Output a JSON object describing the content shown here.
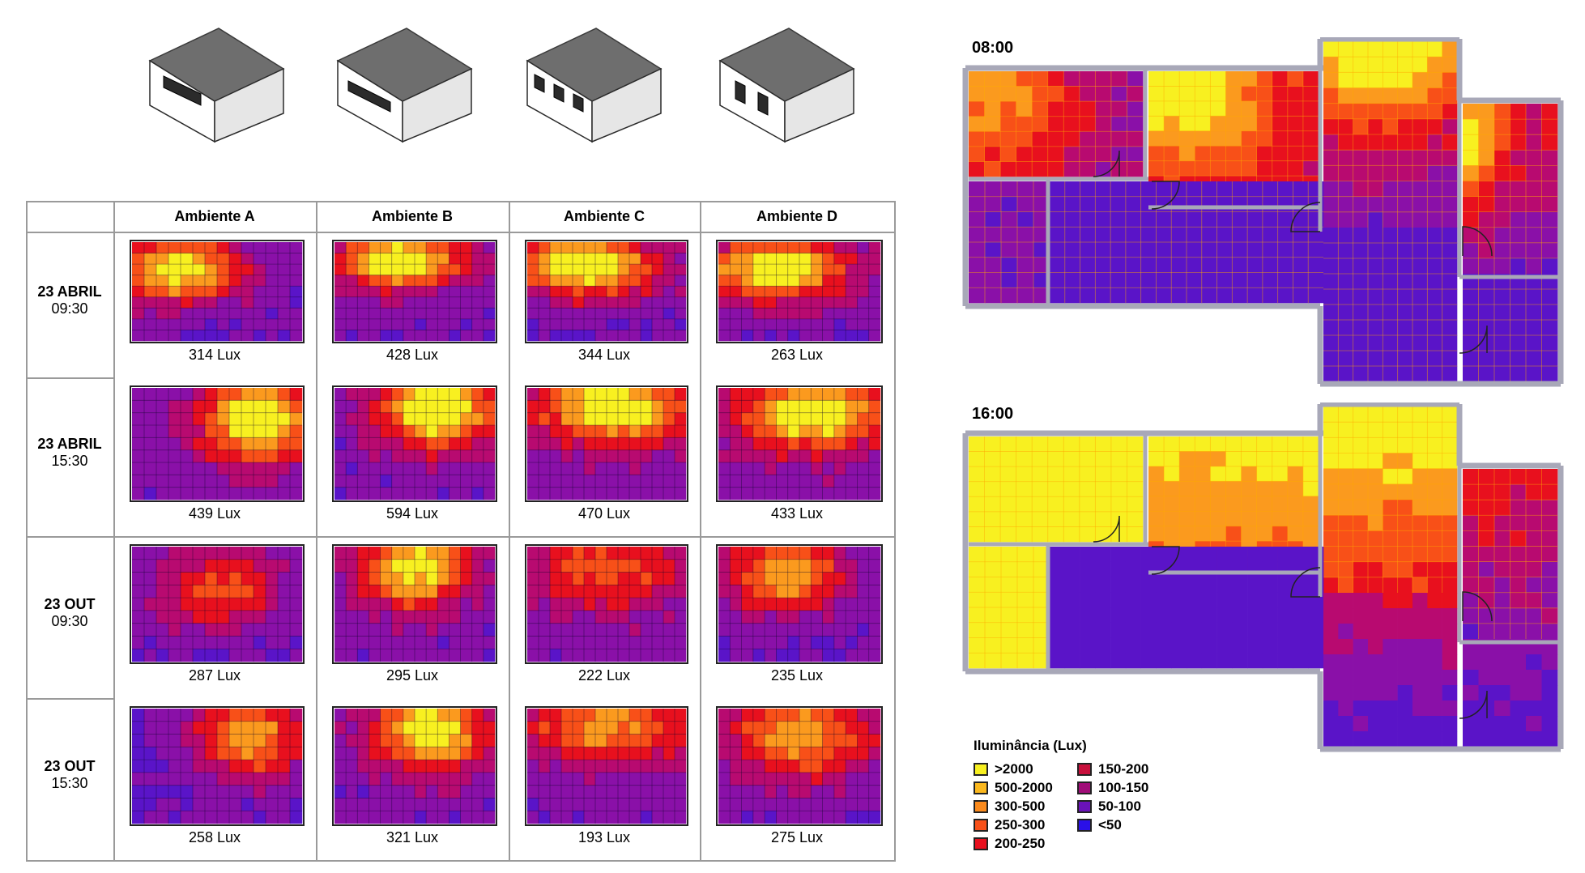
{
  "colors": {
    "c0": "#2a10e8",
    "c1": "#5a14c8",
    "c2": "#8a10a8",
    "c3": "#b80a70",
    "c4": "#e8101e",
    "c5": "#f85018",
    "c6": "#fb9a1e",
    "c7": "#f8f020",
    "pure_blue": "#0a18ff",
    "wall": "#a8a8b8",
    "table_line": "#9a9a9a"
  },
  "table": {
    "columns": [
      "Ambiente A",
      "Ambiente B",
      "Ambiente C",
      "Ambiente D"
    ],
    "rows": [
      {
        "date": "23 ABRIL",
        "time": "09:30",
        "lux": [
          "314 Lux",
          "428 Lux",
          "344 Lux",
          "263 Lux"
        ]
      },
      {
        "date": "23 ABRIL",
        "time": "15:30",
        "lux": [
          "439 Lux",
          "594 Lux",
          "470 Lux",
          "433 Lux"
        ]
      },
      {
        "date": "23 OUT",
        "time": "09:30",
        "lux": [
          "287 Lux",
          "295 Lux",
          "222 Lux",
          "235 Lux"
        ]
      },
      {
        "date": "23 OUT",
        "time": "15:30",
        "lux": [
          "258 Lux",
          "321 Lux",
          "193 Lux",
          "275 Lux"
        ]
      }
    ]
  },
  "models": [
    {
      "name": "ambiente-a-model",
      "window_type": "horizontal-band-left"
    },
    {
      "name": "ambiente-b-model",
      "window_type": "horizontal-band-front"
    },
    {
      "name": "ambiente-c-model",
      "window_type": "three-windows"
    },
    {
      "name": "ambiente-d-model",
      "window_type": "two-windows-side"
    }
  ],
  "plans": [
    {
      "title": "08:00"
    },
    {
      "title": "16:00"
    }
  ],
  "legend": {
    "title": "Iluminância (Lux)",
    "items": [
      {
        "label": ">2000",
        "color": "#f8f020"
      },
      {
        "label": "500-2000",
        "color": "#fbb81e"
      },
      {
        "label": "300-500",
        "color": "#fb8a1c"
      },
      {
        "label": "250-300",
        "color": "#f85018"
      },
      {
        "label": "200-250",
        "color": "#e8101e"
      },
      {
        "label": "150-200",
        "color": "#c8103c"
      },
      {
        "label": "100-150",
        "color": "#a00c78"
      },
      {
        "label": "50-100",
        "color": "#6a12b8"
      },
      {
        "label": "<50",
        "color": "#2a10e8"
      }
    ]
  }
}
